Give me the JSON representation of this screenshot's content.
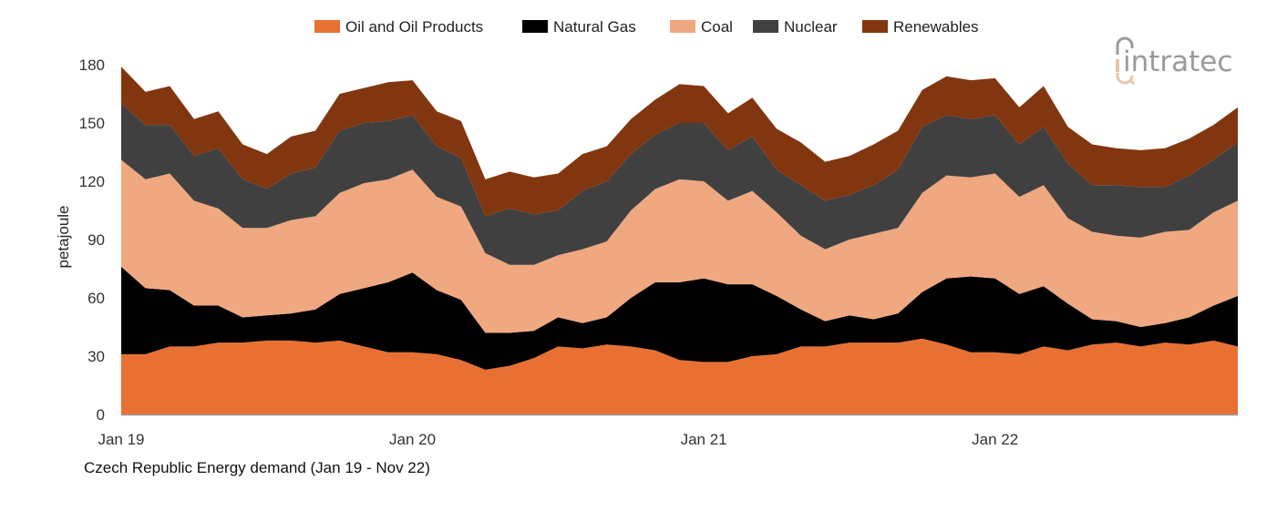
{
  "chart_data": {
    "type": "area",
    "stacked": true,
    "caption": "Czech Republic Energy demand (Jan 19 - Nov 22)",
    "ylabel": "petajoule",
    "xlabel": "",
    "ylim": [
      0,
      180
    ],
    "yticks": [
      0,
      30,
      60,
      90,
      120,
      150,
      180
    ],
    "xtick_labels": [
      "Jan 19",
      "Jan 20",
      "Jan 21",
      "Jan 22"
    ],
    "grid": false,
    "legend_position": "top",
    "x": [
      "Jan 19",
      "Feb 19",
      "Mar 19",
      "Apr 19",
      "May 19",
      "Jun 19",
      "Jul 19",
      "Aug 19",
      "Sep 19",
      "Oct 19",
      "Nov 19",
      "Dec 19",
      "Jan 20",
      "Feb 20",
      "Mar 20",
      "Apr 20",
      "May 20",
      "Jun 20",
      "Jul 20",
      "Aug 20",
      "Sep 20",
      "Oct 20",
      "Nov 20",
      "Dec 20",
      "Jan 21",
      "Feb 21",
      "Mar 21",
      "Apr 21",
      "May 21",
      "Jun 21",
      "Jul 21",
      "Aug 21",
      "Sep 21",
      "Oct 21",
      "Nov 21",
      "Dec 21",
      "Jan 22",
      "Feb 22",
      "Mar 22",
      "Apr 22",
      "May 22",
      "Jun 22",
      "Jul 22",
      "Aug 22",
      "Sep 22",
      "Oct 22",
      "Nov 22"
    ],
    "series": [
      {
        "name": "Oil and Oil Products",
        "color": "#E87033",
        "values": [
          31,
          31,
          35,
          35,
          37,
          37,
          38,
          38,
          37,
          38,
          35,
          32,
          32,
          31,
          28,
          23,
          25,
          29,
          35,
          34,
          36,
          35,
          33,
          28,
          27,
          27,
          30,
          31,
          35,
          35,
          37,
          37,
          37,
          39,
          36,
          32,
          32,
          31,
          35,
          33,
          36,
          37,
          35,
          37,
          36,
          38,
          35
        ]
      },
      {
        "name": "Natural Gas",
        "color": "#000000",
        "values": [
          45,
          34,
          29,
          21,
          19,
          13,
          13,
          14,
          17,
          24,
          30,
          36,
          41,
          33,
          31,
          19,
          17,
          14,
          15,
          13,
          14,
          25,
          35,
          40,
          43,
          40,
          37,
          30,
          19,
          13,
          14,
          12,
          15,
          24,
          34,
          39,
          38,
          31,
          31,
          24,
          13,
          11,
          10,
          10,
          14,
          18,
          26
        ]
      },
      {
        "name": "Coal",
        "color": "#F0A880",
        "values": [
          55,
          56,
          60,
          54,
          50,
          46,
          45,
          48,
          48,
          52,
          54,
          53,
          53,
          48,
          48,
          41,
          35,
          34,
          32,
          38,
          39,
          45,
          48,
          53,
          50,
          43,
          48,
          43,
          38,
          37,
          39,
          44,
          44,
          51,
          53,
          51,
          54,
          50,
          52,
          44,
          45,
          44,
          46,
          47,
          45,
          48,
          49
        ]
      },
      {
        "name": "Nuclear",
        "color": "#404040",
        "values": [
          29,
          28,
          25,
          23,
          31,
          25,
          20,
          24,
          25,
          32,
          31,
          30,
          28,
          26,
          25,
          19,
          29,
          26,
          23,
          30,
          31,
          29,
          28,
          29,
          30,
          26,
          28,
          22,
          26,
          25,
          23,
          25,
          30,
          34,
          31,
          30,
          30,
          27,
          30,
          28,
          24,
          26,
          26,
          23,
          28,
          27,
          30
        ]
      },
      {
        "name": "Renewables",
        "color": "#82360F",
        "values": [
          19,
          17,
          20,
          19,
          19,
          18,
          18,
          19,
          19,
          19,
          18,
          20,
          18,
          18,
          19,
          19,
          19,
          19,
          19,
          19,
          18,
          18,
          18,
          20,
          19,
          19,
          20,
          21,
          22,
          20,
          20,
          21,
          20,
          19,
          20,
          20,
          19,
          19,
          21,
          19,
          21,
          19,
          19,
          20,
          19,
          18,
          18
        ]
      }
    ]
  },
  "logo": {
    "text": "intratec",
    "accent_color": "#E8C4A8"
  }
}
